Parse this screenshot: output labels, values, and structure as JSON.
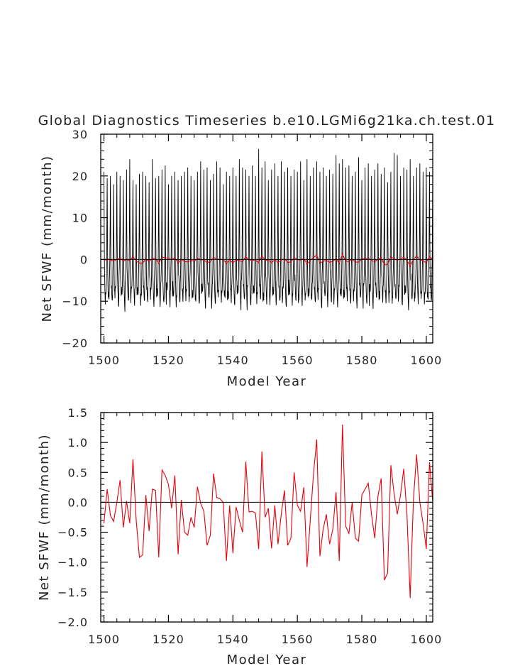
{
  "chart_data": [
    {
      "type": "line",
      "title": "Global Diagnostics Timeseries b.e10.LGMi6g21ka.ch.test.01",
      "xlabel": "Model Year",
      "ylabel": "Net SFWF (mm/month)",
      "xlim": [
        1499,
        1602
      ],
      "ylim": [
        -20,
        30
      ],
      "xticks": [
        1500,
        1520,
        1540,
        1560,
        1580,
        1600
      ],
      "yticks": [
        -20,
        -10,
        0,
        10,
        20,
        30
      ],
      "ytick_labels": [
        "−20",
        "−10",
        "0",
        "10",
        "20",
        "30"
      ],
      "grid": false,
      "zero_line": true,
      "series": [
        {
          "color": "#000000",
          "resolution": "monthly",
          "monthly_pattern": [
            20.2,
            6.5,
            -3.0,
            -6.0,
            -7.8,
            -8.6,
            -8.9,
            -8.2,
            -6.5,
            -3.6,
            0.6,
            9.4
          ],
          "annual_peaks": [
            21.0,
            19.5,
            20.0,
            18.0,
            21.0,
            20.0,
            19.0,
            21.5,
            24.0,
            19.0,
            18.0,
            20.5,
            21.0,
            20.0,
            18.5,
            24.0,
            19.5,
            20.0,
            21.5,
            22.5,
            18.0,
            20.0,
            21.0,
            19.0,
            20.0,
            21.0,
            22.0,
            20.0,
            19.0,
            21.0,
            23.5,
            21.5,
            22.0,
            19.0,
            20.5,
            23.5,
            22.0,
            18.0,
            21.0,
            20.0,
            22.0,
            20.0,
            24.0,
            22.0,
            21.5,
            20.0,
            22.5,
            20.0,
            26.5,
            22.0,
            23.5,
            19.0,
            21.5,
            23.0,
            20.0,
            23.5,
            21.0,
            22.0,
            20.0,
            21.5,
            21.0,
            23.5,
            19.0,
            24.0,
            20.0,
            22.0,
            23.5,
            21.0,
            22.0,
            20.0,
            21.5,
            20.5,
            25.0,
            23.0,
            24.0,
            22.0,
            22.5,
            20.0,
            21.0,
            24.5,
            19.0,
            22.0,
            23.0,
            20.0,
            21.5,
            23.0,
            20.5,
            22.0,
            18.5,
            21.0,
            25.5,
            25.0,
            20.0,
            22.0,
            21.5,
            24.0,
            20.0,
            22.0,
            23.0,
            21.0,
            22.0,
            21.0,
            20.0
          ]
        },
        {
          "color": "#e8000b",
          "resolution": "annual",
          "x": [
            1500,
            1501,
            1502,
            1503,
            1504,
            1505,
            1506,
            1507,
            1508,
            1509,
            1510,
            1511,
            1512,
            1513,
            1514,
            1515,
            1516,
            1517,
            1518,
            1519,
            1520,
            1521,
            1522,
            1523,
            1524,
            1525,
            1526,
            1527,
            1528,
            1529,
            1530,
            1531,
            1532,
            1533,
            1534,
            1535,
            1536,
            1537,
            1538,
            1539,
            1540,
            1541,
            1542,
            1543,
            1544,
            1545,
            1546,
            1547,
            1548,
            1549,
            1550,
            1551,
            1552,
            1553,
            1554,
            1555,
            1556,
            1557,
            1558,
            1559,
            1560,
            1561,
            1562,
            1563,
            1564,
            1565,
            1566,
            1567,
            1568,
            1569,
            1570,
            1571,
            1572,
            1573,
            1574,
            1575,
            1576,
            1577,
            1578,
            1579,
            1580,
            1581,
            1582,
            1583,
            1584,
            1585,
            1586,
            1587,
            1588,
            1589,
            1590,
            1591,
            1592,
            1593,
            1594,
            1595,
            1596,
            1597,
            1598,
            1599,
            1600,
            1601,
            1602
          ],
          "values": [
            -0.35,
            0.22,
            -0.22,
            -0.32,
            0.0,
            0.37,
            -0.42,
            0.02,
            -0.35,
            0.72,
            -0.3,
            -0.92,
            -0.88,
            0.12,
            -0.48,
            0.22,
            0.2,
            -0.92,
            0.54,
            0.45,
            0.3,
            -0.1,
            0.45,
            -0.87,
            0.04,
            -0.5,
            -0.55,
            -0.25,
            -0.42,
            0.26,
            -0.02,
            -0.15,
            -0.72,
            -0.55,
            0.48,
            0.08,
            0.06,
            0.0,
            -0.98,
            -0.05,
            -0.85,
            -0.08,
            -0.3,
            -0.5,
            0.68,
            -0.16,
            -0.15,
            -0.18,
            -0.78,
            0.85,
            -0.25,
            -0.1,
            -0.77,
            -0.05,
            -0.7,
            -0.2,
            0.2,
            -0.72,
            -0.6,
            0.5,
            -0.05,
            -0.15,
            0.25,
            -1.08,
            -0.3,
            0.47,
            1.05,
            -0.9,
            -0.45,
            -0.2,
            -0.7,
            -0.45,
            0.17,
            -0.98,
            1.3,
            -0.4,
            -0.52,
            0.0,
            -0.6,
            -0.65,
            0.12,
            0.22,
            0.32,
            -0.2,
            -0.6,
            0.1,
            0.4,
            -1.3,
            -1.18,
            0.62,
            0.15,
            -0.2,
            0.12,
            0.56,
            -0.2,
            -1.6,
            0.04,
            0.8,
            0.0,
            -0.35,
            -0.78,
            0.67,
            0.0
          ]
        }
      ]
    },
    {
      "type": "line",
      "title": "",
      "xlabel": "Model Year",
      "ylabel": "Net SFWF (mm/month)",
      "xlim": [
        1499,
        1602
      ],
      "ylim": [
        -2.0,
        1.5
      ],
      "xticks": [
        1500,
        1520,
        1540,
        1560,
        1580,
        1600
      ],
      "yticks": [
        -2.0,
        -1.5,
        -1.0,
        -0.5,
        0.0,
        0.5,
        1.0,
        1.5
      ],
      "ytick_labels": [
        "−2.0",
        "−1.5",
        "−1.0",
        "−0.5",
        "0.0",
        "0.5",
        "1.0",
        "1.5"
      ],
      "grid": false,
      "zero_line": true,
      "series": [
        {
          "color": "#e8000b",
          "resolution": "annual",
          "x": [
            1500,
            1501,
            1502,
            1503,
            1504,
            1505,
            1506,
            1507,
            1508,
            1509,
            1510,
            1511,
            1512,
            1513,
            1514,
            1515,
            1516,
            1517,
            1518,
            1519,
            1520,
            1521,
            1522,
            1523,
            1524,
            1525,
            1526,
            1527,
            1528,
            1529,
            1530,
            1531,
            1532,
            1533,
            1534,
            1535,
            1536,
            1537,
            1538,
            1539,
            1540,
            1541,
            1542,
            1543,
            1544,
            1545,
            1546,
            1547,
            1548,
            1549,
            1550,
            1551,
            1552,
            1553,
            1554,
            1555,
            1556,
            1557,
            1558,
            1559,
            1560,
            1561,
            1562,
            1563,
            1564,
            1565,
            1566,
            1567,
            1568,
            1569,
            1570,
            1571,
            1572,
            1573,
            1574,
            1575,
            1576,
            1577,
            1578,
            1579,
            1580,
            1581,
            1582,
            1583,
            1584,
            1585,
            1586,
            1587,
            1588,
            1589,
            1590,
            1591,
            1592,
            1593,
            1594,
            1595,
            1596,
            1597,
            1598,
            1599,
            1600,
            1601,
            1602
          ],
          "values": [
            -0.35,
            0.22,
            -0.22,
            -0.32,
            0.0,
            0.37,
            -0.42,
            0.02,
            -0.35,
            0.72,
            -0.3,
            -0.92,
            -0.88,
            0.12,
            -0.48,
            0.22,
            0.2,
            -0.92,
            0.54,
            0.45,
            0.3,
            -0.1,
            0.45,
            -0.87,
            0.04,
            -0.5,
            -0.55,
            -0.25,
            -0.42,
            0.26,
            -0.02,
            -0.15,
            -0.72,
            -0.55,
            0.48,
            0.08,
            0.06,
            0.0,
            -0.98,
            -0.05,
            -0.85,
            -0.08,
            -0.3,
            -0.5,
            0.68,
            -0.16,
            -0.15,
            -0.18,
            -0.78,
            0.85,
            -0.25,
            -0.1,
            -0.77,
            -0.05,
            -0.7,
            -0.2,
            0.2,
            -0.72,
            -0.6,
            0.5,
            -0.05,
            -0.15,
            0.25,
            -1.08,
            -0.3,
            0.47,
            1.05,
            -0.9,
            -0.45,
            -0.2,
            -0.7,
            -0.45,
            0.17,
            -0.98,
            1.3,
            -0.4,
            -0.52,
            0.0,
            -0.6,
            -0.65,
            0.12,
            0.22,
            0.32,
            -0.2,
            -0.6,
            0.1,
            0.4,
            -1.3,
            -1.18,
            0.62,
            0.15,
            -0.2,
            0.12,
            0.56,
            -0.2,
            -1.6,
            0.04,
            0.8,
            0.0,
            -0.35,
            -0.78,
            0.67,
            0.0
          ]
        }
      ]
    }
  ]
}
